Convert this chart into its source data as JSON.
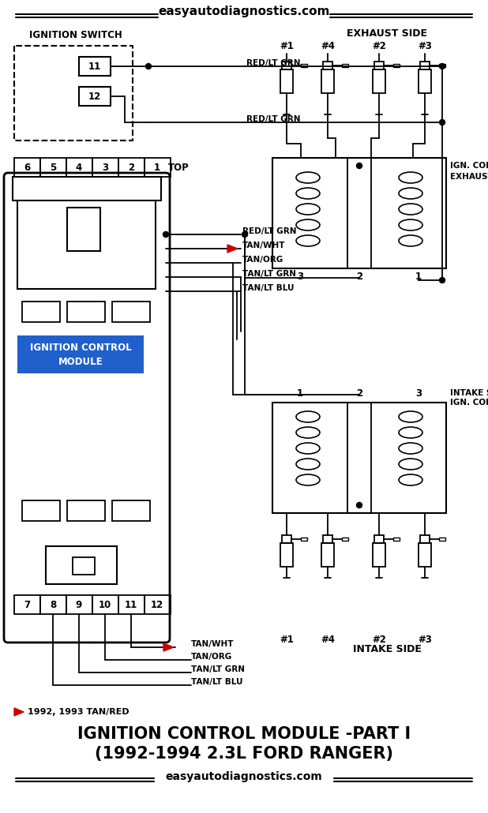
{
  "title_line1": "IGNITION CONTROL MODULE -PART I",
  "title_line2": "(1992-1994 2.3L FORD RANGER)",
  "website": "easyautodiagnostics.com",
  "bg_color": "#ffffff",
  "text_color": "#000000",
  "module_label_bg": "#2060cc",
  "module_label_fg": "#ffffff",
  "red_color": "#cc0000",
  "connector_top_pins": [
    "6",
    "5",
    "4",
    "3",
    "2",
    "1"
  ],
  "connector_bottom_pins": [
    "7",
    "8",
    "9",
    "10",
    "11",
    "12"
  ],
  "exhaust_cylinders": [
    "#1",
    "#4",
    "#2",
    "#3"
  ],
  "intake_cylinders": [
    "#1",
    "#4",
    "#2",
    "#3"
  ],
  "coil_exhaust_pins": [
    "3",
    "2",
    "1"
  ],
  "coil_intake_pins": [
    "1",
    "2",
    "3"
  ],
  "note_text": "1992, 1993 TAN/RED"
}
